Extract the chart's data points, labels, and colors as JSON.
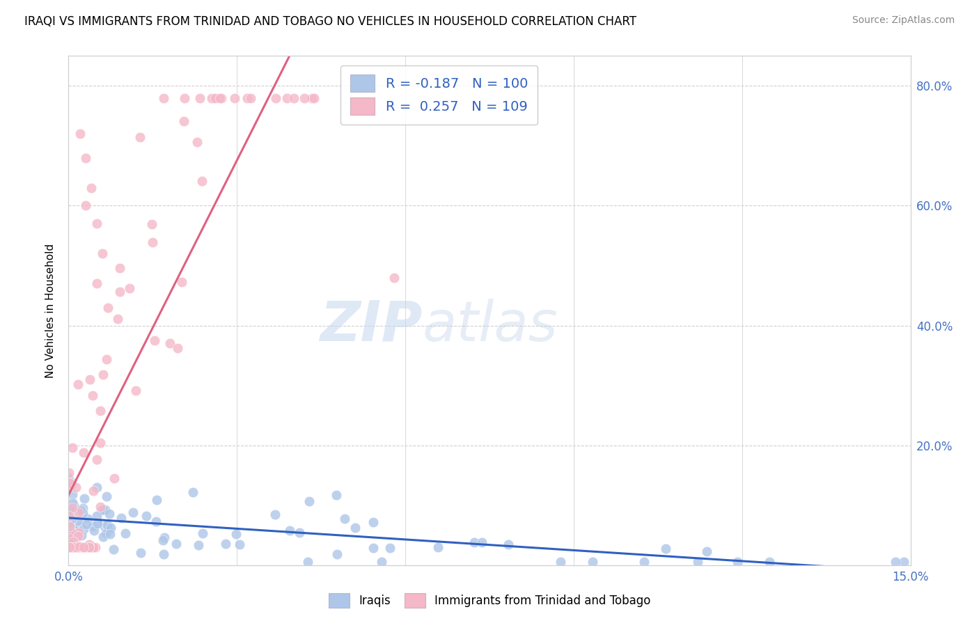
{
  "title": "IRAQI VS IMMIGRANTS FROM TRINIDAD AND TOBAGO NO VEHICLES IN HOUSEHOLD CORRELATION CHART",
  "source": "Source: ZipAtlas.com",
  "ylabel": "No Vehicles in Household",
  "right_yticklabels": [
    "",
    "20.0%",
    "40.0%",
    "60.0%",
    "80.0%"
  ],
  "legend1_label": "R = -0.187   N = 100",
  "legend2_label": "R =  0.257   N = 109",
  "legend1_color": "#aec6e8",
  "legend2_color": "#f4b8c8",
  "iraqis_label": "Iraqis",
  "tt_label": "Immigrants from Trinidad and Tobago",
  "dot_color_iraqis": "#aec6e8",
  "dot_color_tt": "#f4b8c8",
  "line_color_iraqis": "#3060c0",
  "line_color_tt": "#e06080",
  "line_color_tt_dashed": "#d0a0b0",
  "watermark_zip": "ZIP",
  "watermark_atlas": "atlas",
  "R_iraqis": -0.187,
  "N_iraqis": 100,
  "R_tt": 0.257,
  "N_tt": 109,
  "xmin": 0.0,
  "xmax": 0.15,
  "ymin": 0.0,
  "ymax": 0.85
}
